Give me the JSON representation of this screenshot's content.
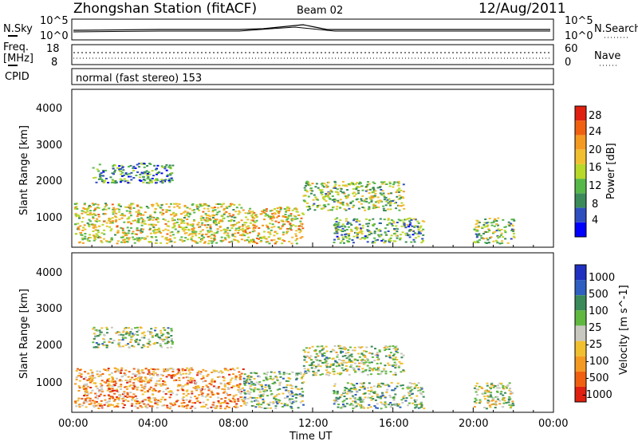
{
  "header": {
    "station": "Zhongshan Station (fitACF)",
    "beam": "Beam 02",
    "date": "12/Aug/2011"
  },
  "top_panel": {
    "left_label": "N.Sky",
    "left_ticks": [
      "10^5",
      "10^0"
    ],
    "right_label": "N.Search",
    "right_ticks": [
      "10^5",
      "10^0"
    ]
  },
  "freq_panel": {
    "left_label_1": "Freq.",
    "left_label_2": "[MHz]",
    "left_ticks": [
      "18",
      "8"
    ],
    "right_label": "Nave",
    "right_ticks": [
      "60",
      "0"
    ]
  },
  "cpid_panel": {
    "label": "CPID",
    "text": "normal (fast stereo) 153"
  },
  "x_axis": {
    "label": "Time UT",
    "ticks": [
      "00:00",
      "04:00",
      "08:00",
      "12:00",
      "16:00",
      "20:00",
      "00:00"
    ]
  },
  "chart_data": [
    {
      "type": "heatmap",
      "title": "",
      "xlabel": "Time UT",
      "ylabel": "Slant Range [km]",
      "xlim": [
        0,
        24
      ],
      "ylim": [
        180,
        4500
      ],
      "yticks": [
        "1000",
        "2000",
        "3000",
        "4000"
      ],
      "colorbar": {
        "label": "Power [dB]",
        "ticks": [
          "4",
          "8",
          "12",
          "16",
          "20",
          "24",
          "28"
        ],
        "colors": [
          "#0000ff",
          "#2f4fc0",
          "#3a8a5a",
          "#57b84a",
          "#b8d82a",
          "#f0c030",
          "#f59a20",
          "#f06010",
          "#e02010"
        ]
      },
      "regions": [
        {
          "t": [
            0.1,
            8.5
          ],
          "r": [
            300,
            1400
          ],
          "level": 0.55
        },
        {
          "t": [
            1.0,
            5.0
          ],
          "r": [
            1950,
            2500
          ],
          "level": 0.3
        },
        {
          "t": [
            8.5,
            11.5
          ],
          "r": [
            300,
            1300
          ],
          "level": 0.6
        },
        {
          "t": [
            11.5,
            16.5
          ],
          "r": [
            1200,
            2000
          ],
          "level": 0.45
        },
        {
          "t": [
            13.0,
            17.5
          ],
          "r": [
            300,
            1000
          ],
          "level": 0.35
        },
        {
          "t": [
            20.0,
            22.0
          ],
          "r": [
            300,
            1000
          ],
          "level": 0.45
        }
      ]
    },
    {
      "type": "heatmap",
      "title": "",
      "xlabel": "Time UT",
      "ylabel": "Slant Range [km]",
      "xlim": [
        0,
        24
      ],
      "ylim": [
        180,
        4500
      ],
      "yticks": [
        "1000",
        "2000",
        "3000",
        "4000"
      ],
      "colorbar": {
        "label": "Velocity [m s^-1]",
        "ticks": [
          "1000",
          "500",
          "100",
          "25",
          "-25",
          "-100",
          "-500",
          "-1000"
        ],
        "colors": [
          "#2030c0",
          "#2f5fc0",
          "#3a8a5a",
          "#60b840",
          "#c8c8c0",
          "#f0c030",
          "#f59a20",
          "#f06010",
          "#e02010"
        ]
      },
      "regions": [
        {
          "t": [
            0.1,
            8.5
          ],
          "r": [
            300,
            1400
          ],
          "level": 0.7
        },
        {
          "t": [
            1.0,
            5.0
          ],
          "r": [
            1950,
            2500
          ],
          "level": 0.45
        },
        {
          "t": [
            8.5,
            11.5
          ],
          "r": [
            300,
            1300
          ],
          "level": 0.4
        },
        {
          "t": [
            11.5,
            16.5
          ],
          "r": [
            1200,
            2000
          ],
          "level": 0.45
        },
        {
          "t": [
            13.0,
            17.5
          ],
          "r": [
            300,
            1000
          ],
          "level": 0.4
        },
        {
          "t": [
            20.0,
            22.0
          ],
          "r": [
            300,
            1000
          ],
          "level": 0.5
        }
      ]
    }
  ]
}
